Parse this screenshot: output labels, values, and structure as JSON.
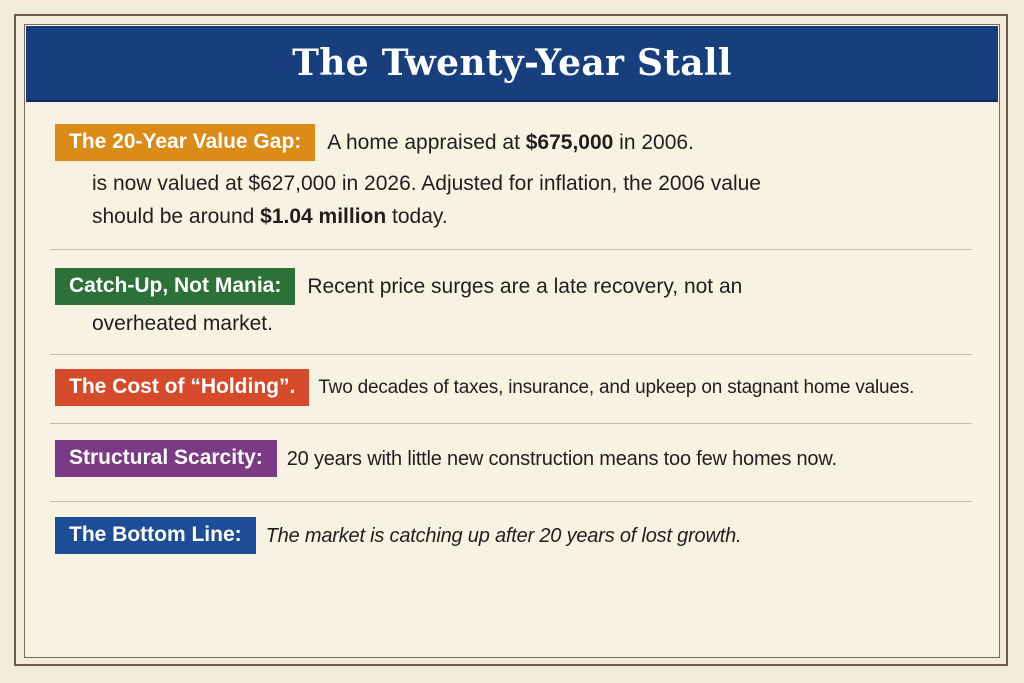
{
  "title": "The Twenty-Year Stall",
  "sections": [
    {
      "label": "The 20-Year Value Gap:",
      "line1": {
        "pre": "A home appraised at ",
        "bold": "$675,000",
        "post": " in 2006."
      },
      "line2": "is now valued at $627,000 in 2026. Adjusted for inflation, the 2006 value",
      "line3": {
        "pre": "should be around ",
        "bold": "$1.04 million",
        "post": " today."
      }
    },
    {
      "label": "Catch-Up, Not Mania:",
      "line1": "Recent price surges are a late recovery, not an",
      "line2": "overheated market."
    },
    {
      "label": "The Cost of “Holding”.",
      "line1": "Two decades of taxes, insurance, and upkeep on stagnant home values."
    },
    {
      "label": "Structural Scarcity:",
      "line1": "20 years with little new construction means too few homes now."
    },
    {
      "label": "The Bottom Line:",
      "line1": "The market is catching up after 20 years of lost growth."
    }
  ],
  "colors": {
    "banner": "#173f7e",
    "tag_value_gap": "#dc8b16",
    "tag_catch_up": "#2c7238",
    "tag_cost": "#d64a2c",
    "tag_scarcity": "#7b3a86",
    "tag_bottom_line": "#1d4d96",
    "background": "#f8f2e3"
  }
}
